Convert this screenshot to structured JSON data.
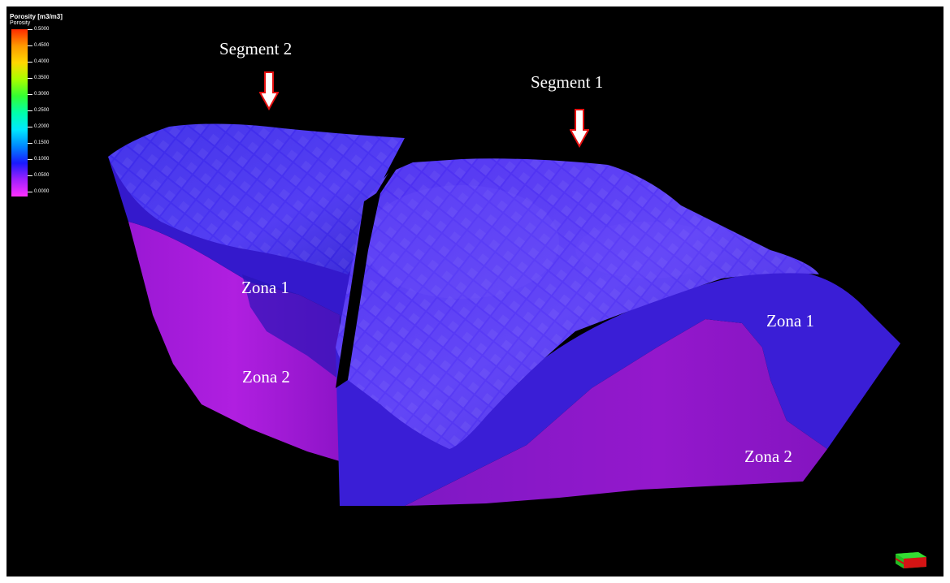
{
  "legend": {
    "title": "Porosity [m3/m3]",
    "subtitle": "Porosity",
    "ticks": [
      "0.5000",
      "0.4500",
      "0.4000",
      "0.3500",
      "0.3000",
      "0.2500",
      "0.2000",
      "0.1500",
      "0.1000",
      "0.0500",
      "0.0000"
    ],
    "colors": [
      "#ff2a00",
      "#ff9a00",
      "#ffd800",
      "#a8ff00",
      "#33ff33",
      "#00ffaa",
      "#00e8ff",
      "#0088ff",
      "#1a1aff",
      "#a020ff",
      "#ff30ff"
    ]
  },
  "labels": {
    "segment_2": "Segment 2",
    "segment_1": "Segment 1",
    "zona_1_left": "Zona 1",
    "zona_2_left": "Zona 2",
    "zona_1_right": "Zona 1",
    "zona_2_right": "Zona 2"
  },
  "colors": {
    "background": "#000000",
    "zone1": "#3a22e0",
    "zone2": "#a019d8",
    "arrow_fill": "#ffffff",
    "arrow_outline": "#e41010",
    "axis_x": "#e41010",
    "axis_y": "#22cc22"
  },
  "icons": {
    "orientation": "orientation-axis-icon",
    "pointer": "down-arrow-icon"
  }
}
